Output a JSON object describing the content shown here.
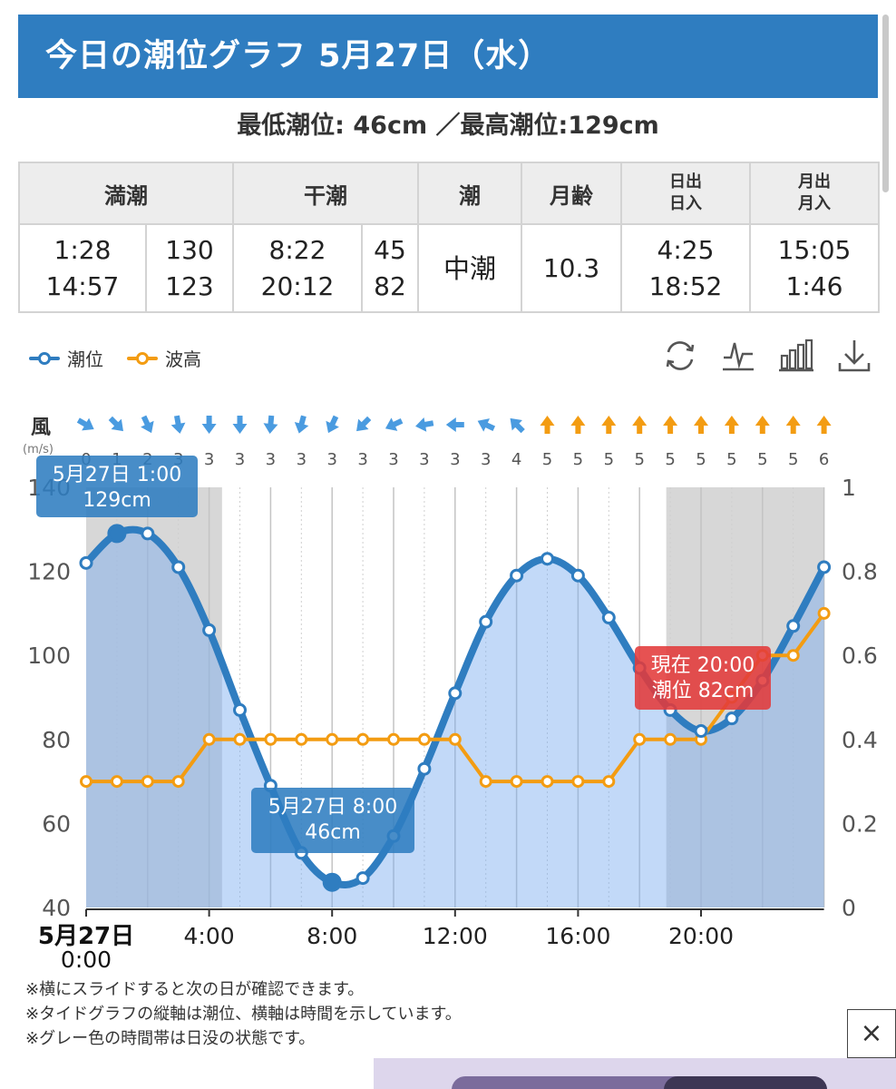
{
  "header": {
    "title": "今日の潮位グラフ 5月27日（水）"
  },
  "summary": {
    "text": "最低潮位: 46cm ／最高潮位:129cm"
  },
  "table": {
    "headers": {
      "high": "満潮",
      "low": "干潮",
      "tide": "潮",
      "moon_age": "月齢",
      "sun": [
        "日出",
        "日入"
      ],
      "moon": [
        "月出",
        "月入"
      ]
    },
    "high_times": [
      "1:28",
      "14:57"
    ],
    "high_levels": [
      "130",
      "123"
    ],
    "low_times": [
      "8:22",
      "20:12"
    ],
    "low_levels": [
      "45",
      "82"
    ],
    "tide_name": "中潮",
    "moon_age": "10.3",
    "sun_times": [
      "4:25",
      "18:52"
    ],
    "moon_times": [
      "15:05",
      "1:46"
    ]
  },
  "legend": {
    "tide": "潮位",
    "wave": "波高"
  },
  "toolbar": [
    "refresh-icon",
    "line-chart-icon",
    "bar-chart-icon",
    "download-icon"
  ],
  "colors": {
    "tide": "#2f7dc0",
    "wave": "#f39c12",
    "night": "#d7d7d7",
    "current": "#e23a3a"
  },
  "chart_data": {
    "type": "line",
    "wind_label": "風",
    "wind_unit": "(m/s)",
    "x": [
      0,
      1,
      2,
      3,
      4,
      5,
      6,
      7,
      8,
      9,
      10,
      11,
      12,
      13,
      14,
      15,
      16,
      17,
      18,
      19,
      20,
      21,
      22,
      23,
      24
    ],
    "x_tick_labels": [
      "4:00",
      "8:00",
      "12:00",
      "16:00",
      "20:00"
    ],
    "x_tick_values": [
      4,
      8,
      12,
      16,
      20
    ],
    "x_date_label": "5月27日",
    "x_start_label": "0:00",
    "y_left": {
      "ticks": [
        "140",
        "120",
        "100",
        "80",
        "60",
        "40"
      ],
      "range": [
        40,
        140
      ]
    },
    "y_right": {
      "ticks": [
        "1",
        "0.8",
        "0.6",
        "0.4",
        "0.2",
        "0"
      ],
      "range": [
        0,
        1
      ]
    },
    "series": [
      {
        "name": "潮位",
        "axis": "left",
        "values": [
          122,
          129,
          129,
          121,
          106,
          87,
          69,
          53,
          46,
          47,
          57,
          73,
          91,
          108,
          119,
          123,
          119,
          109,
          97,
          87,
          82,
          85,
          94,
          107,
          121
        ]
      },
      {
        "name": "波高",
        "axis": "right",
        "values": [
          0.3,
          0.3,
          0.3,
          0.3,
          0.4,
          0.4,
          0.4,
          0.4,
          0.4,
          0.4,
          0.4,
          0.4,
          0.4,
          0.3,
          0.3,
          0.3,
          0.3,
          0.3,
          0.4,
          0.4,
          0.4,
          0.5,
          0.6,
          0.6,
          0.7
        ]
      }
    ],
    "wind_speed": [
      0,
      1,
      2,
      3,
      3,
      3,
      3,
      3,
      3,
      3,
      3,
      3,
      3,
      3,
      4,
      5,
      5,
      5,
      5,
      5,
      5,
      5,
      5,
      5,
      6
    ],
    "wind_dir_deg": [
      -60,
      -45,
      -25,
      -10,
      0,
      0,
      5,
      15,
      25,
      45,
      65,
      80,
      90,
      115,
      135,
      180,
      180,
      180,
      180,
      180,
      180,
      180,
      180,
      180,
      180
    ],
    "night_bands": [
      [
        0,
        4.42
      ],
      [
        18.87,
        24
      ]
    ],
    "callouts": [
      {
        "line1": "5月27日 1:00",
        "line2": "129cm",
        "x": 1,
        "kind": "high"
      },
      {
        "line1": "5月27日 8:00",
        "line2": "46cm",
        "x": 8,
        "kind": "low"
      },
      {
        "line1": "現在 20:00",
        "line2": "潮位 82cm",
        "x": 20,
        "kind": "current"
      }
    ]
  },
  "notes": [
    "※横にスライドすると次の日が確認できます。",
    "※タイドグラフの縦軸は潮位、横軸は時間を示しています。",
    "※グレー色の時間帯は日没の状態です。"
  ],
  "close_label": "×"
}
